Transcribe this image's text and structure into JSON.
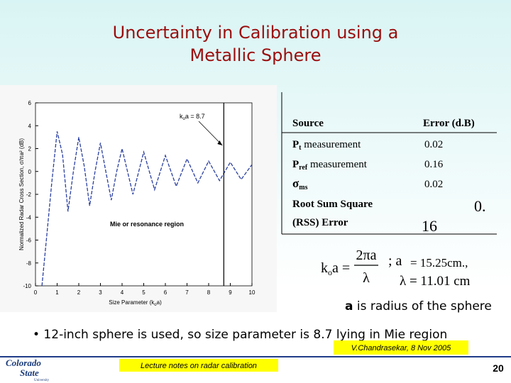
{
  "header": {
    "title_lines": [
      "Uncertainty in Calibration using a",
      "Metallic Sphere"
    ]
  },
  "chart_data": {
    "type": "line",
    "x": [
      0.3,
      0.5,
      0.75,
      1,
      1.25,
      1.5,
      1.75,
      2,
      2.25,
      2.5,
      2.75,
      3,
      3.25,
      3.5,
      3.75,
      4,
      4.5,
      5,
      5.5,
      6,
      6.5,
      7,
      7.5,
      8,
      8.5,
      9,
      9.5,
      10
    ],
    "series": [
      {
        "color": "#2a3fa0",
        "values": [
          -10,
          -6,
          -1,
          3.5,
          1.5,
          -3.5,
          0,
          3,
          0.5,
          -3,
          0,
          2.5,
          0,
          -2.5,
          0,
          2,
          -2,
          1.7,
          -1.6,
          1.4,
          -1.3,
          1.1,
          -1,
          0.9,
          -0.8,
          0.8,
          -0.7,
          0.6
        ]
      }
    ],
    "xlim": [
      0,
      10
    ],
    "xticks": [
      0,
      1,
      2,
      3,
      4,
      5,
      6,
      7,
      8,
      9,
      10
    ],
    "ylim": [
      -10,
      6
    ],
    "yticks": [
      -10,
      -8,
      -6,
      -4,
      -2,
      0,
      2,
      4,
      6
    ],
    "ylabel": "Normalized Radar Cross Section, σ/πa² (dB)",
    "xlabel_parts": [
      "Size Parameter (k",
      "o",
      "a)"
    ],
    "marker_x": 8.7,
    "marker_label_parts": [
      "k",
      "o",
      "a = 8.7"
    ],
    "region_label": "Mie or resonance region"
  },
  "table": {
    "header": [
      "Source",
      "Error (d.B)"
    ],
    "rows": [
      {
        "source_parts": [
          "P",
          "t",
          " measurement"
        ],
        "error": "0.02"
      },
      {
        "source_parts": [
          "P",
          "ref",
          " measurement"
        ],
        "error": "0.16"
      },
      {
        "source_parts": [
          "σ",
          "ms"
        ],
        "error": "0.02"
      }
    ],
    "total": {
      "source_lines": [
        "Root Sum Square",
        "(RSS) Error"
      ],
      "error_parts": [
        "0.",
        "16"
      ]
    }
  },
  "formula": {
    "lhs_parts": [
      "k",
      "o",
      "a ="
    ],
    "numerator": "2πa",
    "denominator": "λ",
    "sep": "; a",
    "a_value": "= 15.25cm.,",
    "lambda_value": "λ = 11.01  cm"
  },
  "note_parts": [
    "a",
    " is radius of the sphere"
  ],
  "bullet": "• 12-inch sphere is used, so size parameter is 8.7 lying in Mie region",
  "footer": {
    "logo_lines": [
      "Colorado",
      "State",
      "University"
    ],
    "course": "Lecture notes on radar calibration",
    "author": "V.Chandrasekar, 8 Nov 2005",
    "page": "20"
  }
}
